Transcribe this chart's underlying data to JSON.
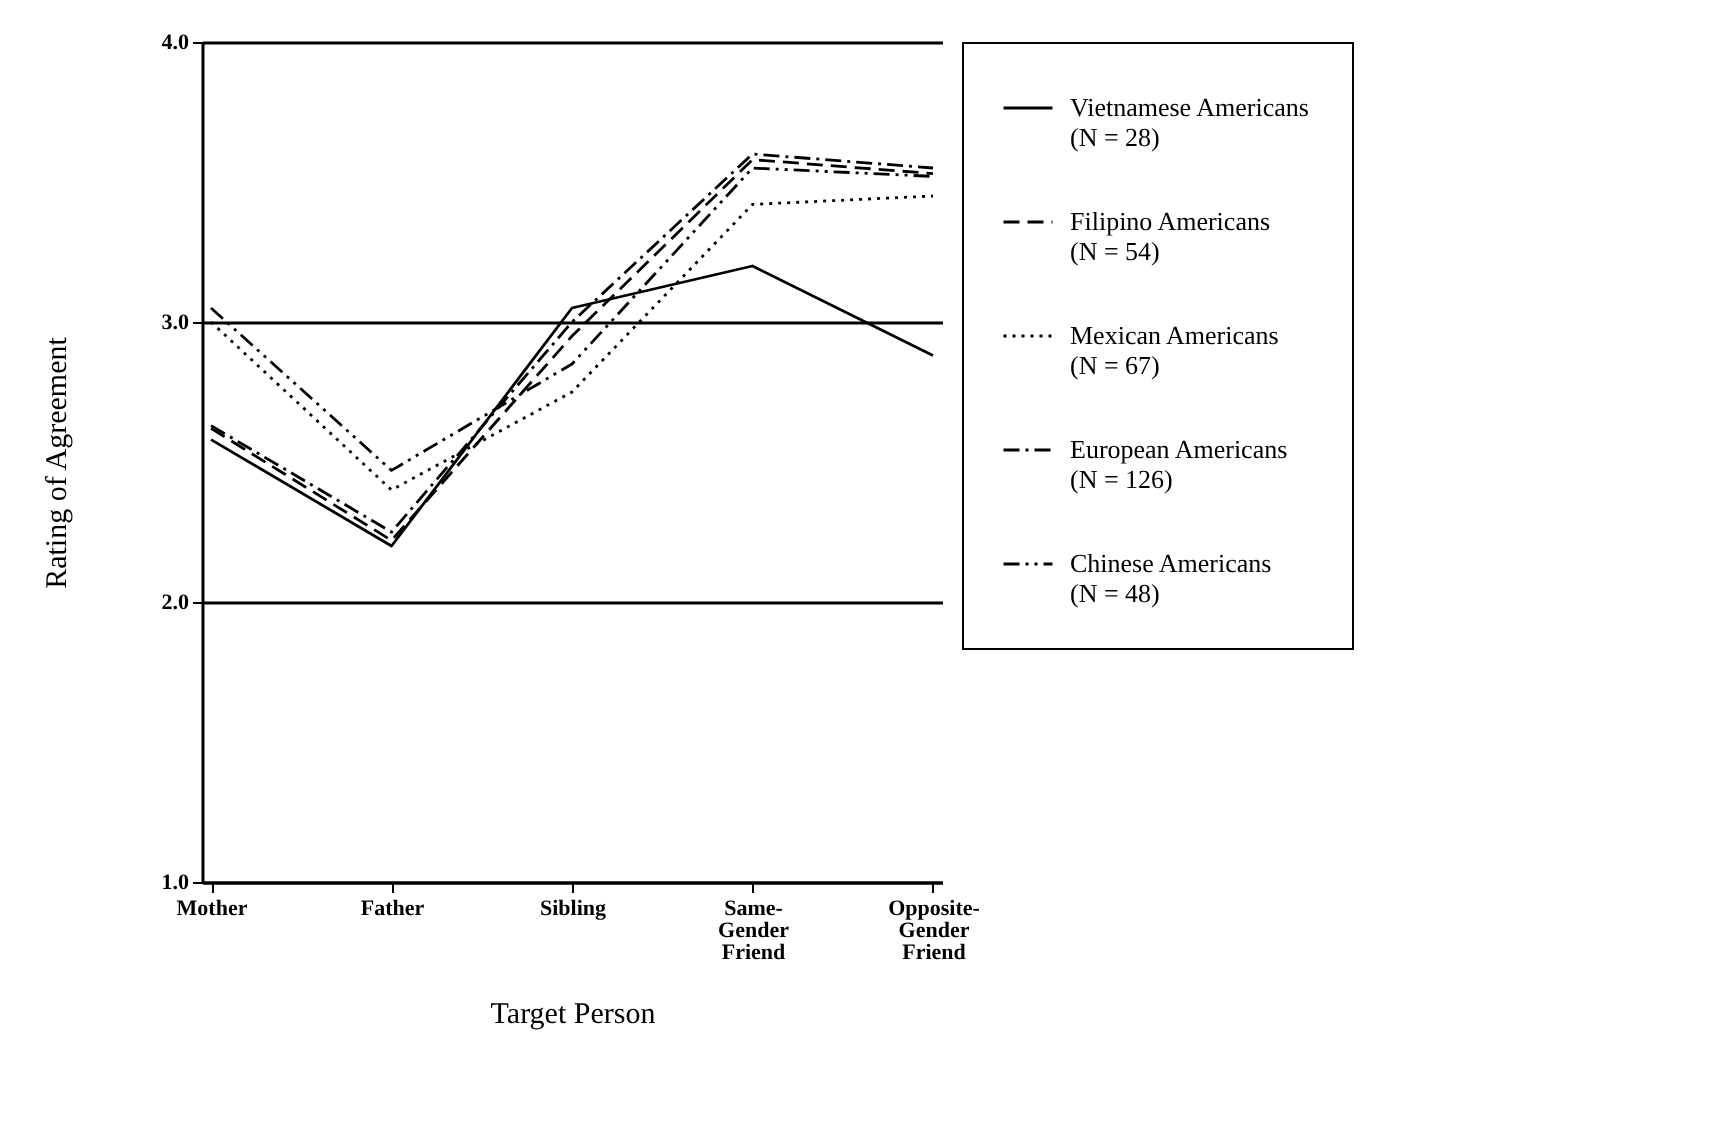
{
  "chart_data": {
    "type": "line",
    "xlabel": "Target Person",
    "ylabel": "Rating of Agreement",
    "categories": [
      "Mother",
      "Father",
      "Sibling",
      "Same-\nGender\nFriend",
      "Opposite-\nGender\nFriend"
    ],
    "series": [
      {
        "name": "Vietnamese Americans\n(N = 28)",
        "color": "#000000",
        "line_style": "solid",
        "values": [
          2.58,
          2.2,
          3.05,
          3.2,
          2.88
        ]
      },
      {
        "name": "Filipino Americans\n(N = 54)",
        "color": "#000000",
        "line_style": "dashed",
        "values": [
          2.62,
          2.22,
          2.95,
          3.58,
          3.53
        ]
      },
      {
        "name": "Mexican Americans\n(N = 67)",
        "color": "#000000",
        "line_style": "dotted",
        "values": [
          3.0,
          2.4,
          2.75,
          3.42,
          3.45
        ]
      },
      {
        "name": "European Americans\n(N = 126)",
        "color": "#000000",
        "line_style": "dashdot",
        "values": [
          2.63,
          2.25,
          3.0,
          3.6,
          3.55
        ]
      },
      {
        "name": "Chinese Americans\n(N = 48)",
        "color": "#000000",
        "line_style": "dashdotdot",
        "values": [
          3.05,
          2.47,
          2.85,
          3.55,
          3.52
        ]
      }
    ],
    "ylim": [
      1,
      4
    ],
    "yticks": [
      {
        "value": 1,
        "label": "1.0"
      },
      {
        "value": 2,
        "label": "2.0"
      },
      {
        "value": 3,
        "label": "3.0"
      },
      {
        "value": 4,
        "label": "4.0"
      }
    ],
    "grid": "y",
    "legend": "right",
    "marker": "none"
  }
}
